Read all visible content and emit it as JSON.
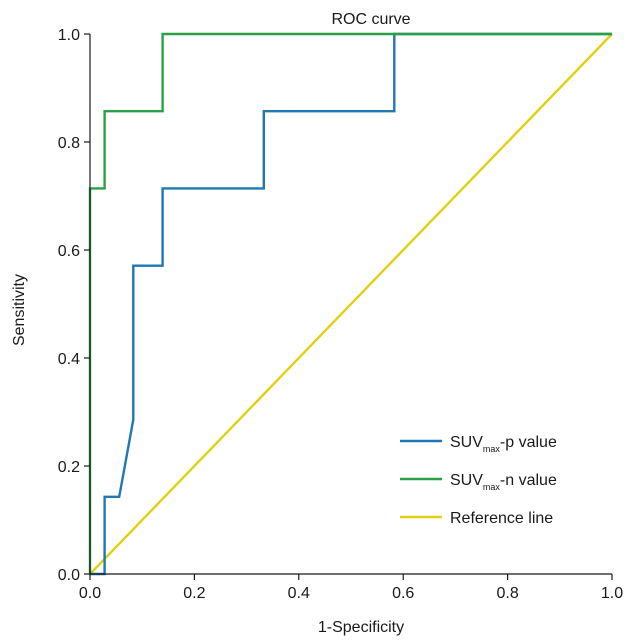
{
  "chart_data": {
    "type": "line",
    "title": "ROC curve",
    "xlabel": "1-Specificity",
    "ylabel": "Sensitivity",
    "xlim": [
      0,
      1
    ],
    "ylim": [
      0,
      1
    ],
    "x_ticks": [
      "0.0",
      "0.2",
      "0.4",
      "0.6",
      "0.8",
      "1.0"
    ],
    "y_ticks": [
      "0.0",
      "0.2",
      "0.4",
      "0.6",
      "0.8",
      "1.0"
    ],
    "grid": false,
    "legend_position": "bottom-right",
    "series": [
      {
        "name": "SUV",
        "name_subscript": "max",
        "name_suffix": "-p value",
        "color": "#1f77b4",
        "points": [
          [
            0.0,
            0.0
          ],
          [
            0.028,
            0.0
          ],
          [
            0.028,
            0.143
          ],
          [
            0.056,
            0.143
          ],
          [
            0.083,
            0.286
          ],
          [
            0.083,
            0.571
          ],
          [
            0.139,
            0.571
          ],
          [
            0.139,
            0.714
          ],
          [
            0.333,
            0.714
          ],
          [
            0.333,
            0.857
          ],
          [
            0.583,
            0.857
          ],
          [
            0.583,
            1.0
          ],
          [
            1.0,
            1.0
          ]
        ]
      },
      {
        "name": "SUV",
        "name_subscript": "max",
        "name_suffix": "-n value",
        "color": "#2ca047",
        "points": [
          [
            0.0,
            0.0
          ],
          [
            0.0,
            0.714
          ],
          [
            0.028,
            0.714
          ],
          [
            0.028,
            0.857
          ],
          [
            0.139,
            0.857
          ],
          [
            0.139,
            1.0
          ],
          [
            1.0,
            1.0
          ]
        ]
      },
      {
        "name": "Reference line",
        "color": "#e0d10f",
        "points": [
          [
            0.0,
            0.0
          ],
          [
            1.0,
            1.0
          ]
        ]
      }
    ]
  }
}
